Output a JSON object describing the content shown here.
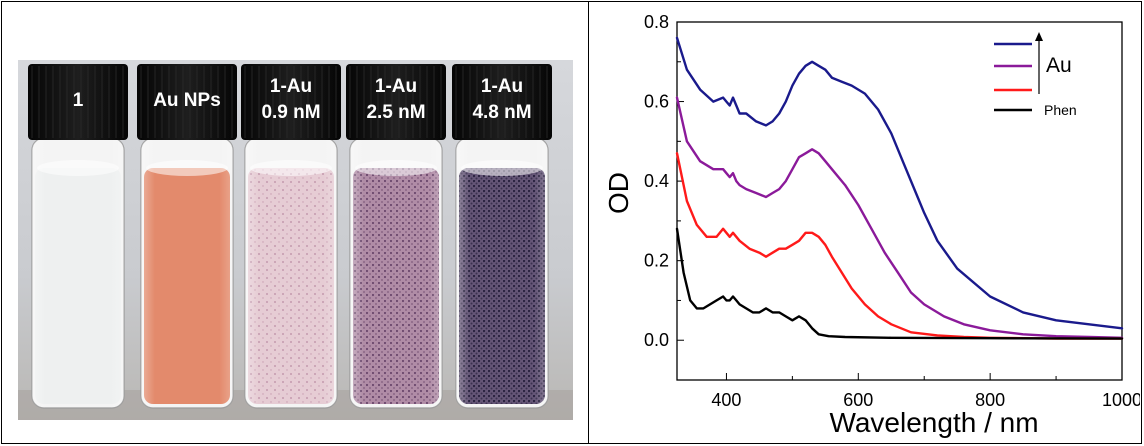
{
  "vials": [
    {
      "label_lines": [
        "1"
      ],
      "liquid": "clear"
    },
    {
      "label_lines": [
        "Au NPs"
      ],
      "liquid": "gold"
    },
    {
      "label_lines": [
        "1-Au",
        "0.9 nM"
      ],
      "liquid": "pink"
    },
    {
      "label_lines": [
        "1-Au",
        "2.5 nM"
      ],
      "liquid": "mauve"
    },
    {
      "label_lines": [
        "1-Au",
        "4.8 nM"
      ],
      "liquid": "dark"
    }
  ],
  "colors": {
    "blue": "#1a1a8c",
    "purple": "#8b1a9a",
    "red": "#ff1a1a",
    "black": "#000000",
    "gold_liquid": "#e38a6c",
    "pink_liquid": "#e6ccd4",
    "mauve_liquid": "#b08ca6",
    "dark_liquid": "#655677"
  },
  "chart_data": {
    "type": "line",
    "xlabel": "Wavelength / nm",
    "ylabel": "OD",
    "xlim": [
      325,
      1000
    ],
    "ylim": [
      -0.1,
      0.8
    ],
    "xticks": [
      400,
      600,
      800,
      1000
    ],
    "yticks": [
      0.0,
      0.2,
      0.4,
      0.6,
      0.8
    ],
    "ytick_labels": [
      "0.0",
      "0.2",
      "0.4",
      "0.6",
      "0.8"
    ],
    "legend": {
      "placement": "top-right",
      "arrow_label": "Au",
      "entries": [
        "",
        "",
        "",
        "Phen"
      ]
    },
    "series": [
      {
        "color": "blue",
        "x": [
          325,
          340,
          360,
          380,
          395,
          400,
          405,
          410,
          415,
          420,
          430,
          445,
          460,
          470,
          480,
          490,
          500,
          510,
          520,
          530,
          540,
          550,
          560,
          575,
          590,
          610,
          630,
          650,
          670,
          690,
          700,
          720,
          750,
          800,
          850,
          900,
          950,
          1000
        ],
        "y": [
          0.76,
          0.68,
          0.63,
          0.6,
          0.61,
          0.6,
          0.59,
          0.61,
          0.59,
          0.57,
          0.57,
          0.55,
          0.54,
          0.55,
          0.57,
          0.6,
          0.64,
          0.67,
          0.69,
          0.7,
          0.69,
          0.68,
          0.66,
          0.65,
          0.64,
          0.62,
          0.58,
          0.52,
          0.44,
          0.36,
          0.32,
          0.25,
          0.18,
          0.11,
          0.07,
          0.05,
          0.04,
          0.03
        ]
      },
      {
        "color": "purple",
        "x": [
          325,
          340,
          360,
          380,
          395,
          400,
          405,
          410,
          415,
          420,
          430,
          445,
          460,
          470,
          480,
          490,
          500,
          510,
          520,
          530,
          540,
          550,
          560,
          580,
          600,
          620,
          640,
          660,
          680,
          700,
          730,
          760,
          800,
          850,
          900,
          950,
          1000
        ],
        "y": [
          0.61,
          0.5,
          0.45,
          0.43,
          0.43,
          0.42,
          0.41,
          0.42,
          0.4,
          0.39,
          0.38,
          0.37,
          0.36,
          0.37,
          0.38,
          0.4,
          0.43,
          0.46,
          0.47,
          0.48,
          0.47,
          0.45,
          0.43,
          0.39,
          0.34,
          0.28,
          0.22,
          0.17,
          0.12,
          0.09,
          0.06,
          0.04,
          0.025,
          0.015,
          0.01,
          0.008,
          0.006
        ]
      },
      {
        "color": "red",
        "x": [
          325,
          340,
          355,
          370,
          385,
          395,
          400,
          405,
          410,
          415,
          420,
          435,
          450,
          460,
          470,
          480,
          490,
          500,
          510,
          520,
          530,
          540,
          550,
          560,
          575,
          590,
          610,
          630,
          650,
          680,
          720,
          760,
          800,
          850,
          900,
          1000
        ],
        "y": [
          0.47,
          0.35,
          0.29,
          0.26,
          0.26,
          0.28,
          0.27,
          0.26,
          0.27,
          0.26,
          0.25,
          0.23,
          0.22,
          0.21,
          0.22,
          0.23,
          0.23,
          0.24,
          0.25,
          0.27,
          0.27,
          0.26,
          0.24,
          0.21,
          0.17,
          0.13,
          0.09,
          0.06,
          0.04,
          0.02,
          0.012,
          0.008,
          0.006,
          0.005,
          0.004,
          0.004
        ]
      },
      {
        "color": "black",
        "x": [
          325,
          335,
          345,
          355,
          365,
          375,
          385,
          395,
          400,
          405,
          410,
          415,
          420,
          430,
          440,
          450,
          460,
          470,
          480,
          490,
          500,
          510,
          520,
          530,
          540,
          555,
          580,
          650,
          800,
          1000
        ],
        "y": [
          0.28,
          0.17,
          0.1,
          0.08,
          0.08,
          0.09,
          0.1,
          0.11,
          0.1,
          0.1,
          0.11,
          0.1,
          0.09,
          0.08,
          0.07,
          0.07,
          0.08,
          0.07,
          0.07,
          0.06,
          0.05,
          0.06,
          0.05,
          0.03,
          0.015,
          0.01,
          0.008,
          0.006,
          0.005,
          0.004
        ]
      }
    ]
  }
}
